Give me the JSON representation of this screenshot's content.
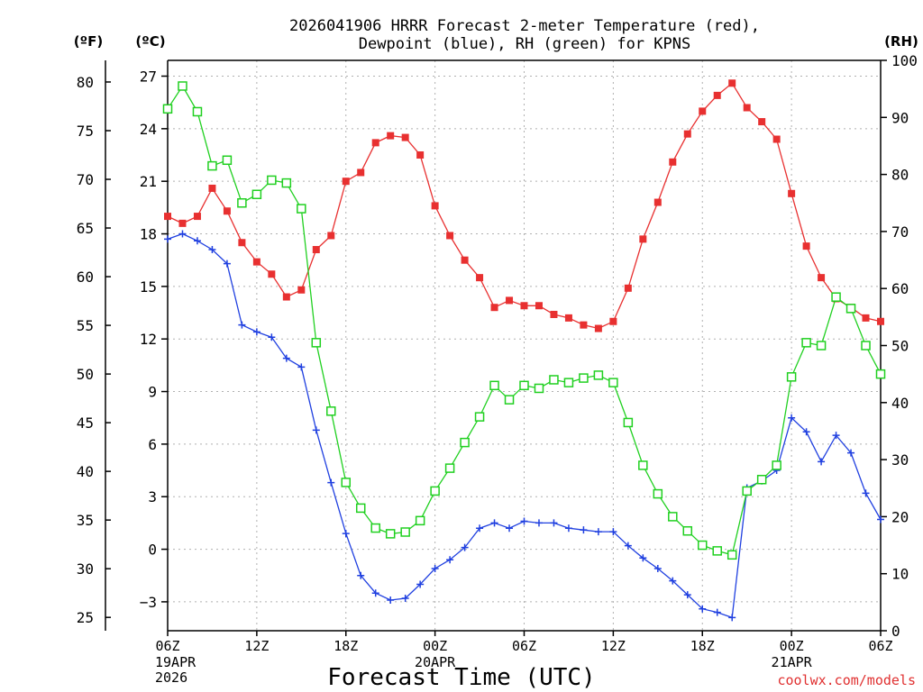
{
  "chart_data": {
    "type": "line",
    "title_line1": "2026041906 HRRR Forecast 2-meter Temperature (red),",
    "title_line2": "Dewpoint (blue), RH (green) for KPNS",
    "xlabel": "Forecast Time (UTC)",
    "credit": "coolwx.com/models",
    "units": {
      "fahrenheit": "(ºF)",
      "celsius": "(ºC)",
      "rh": "(RH)"
    },
    "x_ticks": [
      {
        "label": "06Z",
        "date": "19APR",
        "year": "2026",
        "hour": 0
      },
      {
        "label": "12Z",
        "hour": 6
      },
      {
        "label": "18Z",
        "hour": 12
      },
      {
        "label": "00Z",
        "date": "20APR",
        "hour": 18
      },
      {
        "label": "06Z",
        "hour": 24
      },
      {
        "label": "12Z",
        "hour": 30
      },
      {
        "label": "18Z",
        "hour": 36
      },
      {
        "label": "00Z",
        "date": "21APR",
        "hour": 42
      },
      {
        "label": "06Z",
        "hour": 48
      }
    ],
    "xlim": [
      0,
      48
    ],
    "ylim_c": [
      -4.65,
      27.9
    ],
    "y_ticks_c": [
      "-3",
      "0",
      "3",
      "6",
      "9",
      "12",
      "15",
      "18",
      "21",
      "24",
      "27"
    ],
    "y_ticks_f": [
      "25",
      "30",
      "35",
      "40",
      "45",
      "50",
      "55",
      "60",
      "65",
      "70",
      "75",
      "80"
    ],
    "ylim_rh": [
      0,
      100
    ],
    "y_ticks_rh": [
      "0",
      "10",
      "20",
      "30",
      "40",
      "50",
      "60",
      "70",
      "80",
      "90",
      "100"
    ],
    "grid": true,
    "series": [
      {
        "name": "2-meter Temperature",
        "unit": "C",
        "color": "#e83030",
        "marker": "filled-square",
        "values": [
          19.0,
          18.6,
          19.0,
          20.6,
          19.3,
          17.5,
          16.4,
          15.7,
          14.4,
          14.8,
          17.1,
          17.9,
          21.0,
          21.5,
          23.2,
          23.6,
          23.5,
          22.5,
          19.6,
          17.9,
          16.5,
          15.5,
          13.8,
          14.2,
          13.9,
          13.9,
          13.4,
          13.2,
          12.8,
          12.6,
          13.0,
          14.9,
          17.7,
          19.8,
          22.1,
          23.7,
          25.0,
          25.9,
          26.6,
          25.2,
          24.4,
          23.4,
          20.3,
          17.3,
          15.5,
          14.3,
          13.8,
          13.2,
          13.0
        ]
      },
      {
        "name": "Dewpoint",
        "unit": "C",
        "color": "#2040e0",
        "marker": "plus",
        "values": [
          17.7,
          18.0,
          17.6,
          17.1,
          16.3,
          12.8,
          12.4,
          12.1,
          10.9,
          10.4,
          6.8,
          3.8,
          0.9,
          -1.5,
          -2.5,
          -2.9,
          -2.8,
          -2.0,
          -1.1,
          -0.6,
          0.1,
          1.2,
          1.5,
          1.2,
          1.6,
          1.5,
          1.5,
          1.2,
          1.1,
          1.0,
          1.0,
          0.2,
          -0.5,
          -1.1,
          -1.8,
          -2.6,
          -3.4,
          -3.6,
          -3.9,
          3.5,
          3.9,
          4.5,
          7.5,
          6.7,
          5.0,
          6.5,
          5.5,
          3.2,
          1.7
        ]
      },
      {
        "name": "RH",
        "unit": "%",
        "color": "#20d020",
        "marker": "open-square",
        "values": [
          91.5,
          95.5,
          91.0,
          81.5,
          82.5,
          75.0,
          76.5,
          79.0,
          78.5,
          74.0,
          50.5,
          38.5,
          26.0,
          21.5,
          18.0,
          17.0,
          17.3,
          19.3,
          24.5,
          28.5,
          33.0,
          37.5,
          43.0,
          40.5,
          43.0,
          42.5,
          44.0,
          43.5,
          44.3,
          44.8,
          43.5,
          36.5,
          29.0,
          24.0,
          20.0,
          17.5,
          15.0,
          14.0,
          13.3,
          24.5,
          26.5,
          29.0,
          44.5,
          50.5,
          50.0,
          58.5,
          56.5,
          50.0,
          45.0
        ]
      }
    ]
  }
}
